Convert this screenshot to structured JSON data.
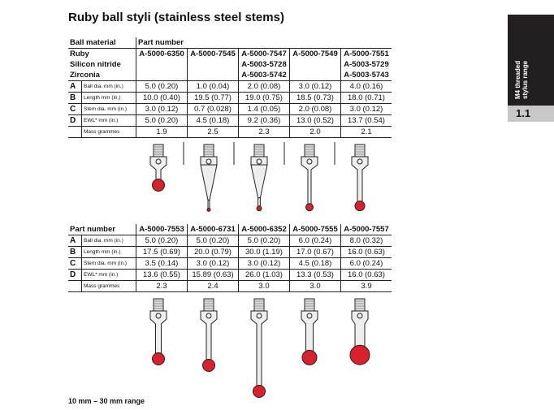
{
  "title": "Ruby ball styli (stainless steel stems)",
  "table1": {
    "ball_material_label": "Ball material",
    "part_number_label": "Part number",
    "materials": [
      "Ruby",
      "Silicon nitride",
      "Zirconia"
    ],
    "parts": [
      [
        "A-5000-6350",
        "",
        ""
      ],
      [
        "A-5000-7545",
        "",
        ""
      ],
      [
        "A-5000-7547",
        "A-5003-5728",
        "A-5003-5742"
      ],
      [
        "A-5000-7549",
        "",
        ""
      ],
      [
        "A-5000-7551",
        "A-5003-5729",
        "A-5003-5743"
      ]
    ],
    "rows": [
      {
        "letter": "A",
        "label": "Ball dia. mm (in.)",
        "values": [
          "5.0 (0.20)",
          "1.0 (0.04)",
          "2.0 (0.08)",
          "3.0 (0.12)",
          "4.0 (0.16)"
        ]
      },
      {
        "letter": "B",
        "label": "Length mm (in.)",
        "values": [
          "10.0 (0.40)",
          "19.5 (0.77)",
          "19.0 (0.75)",
          "18.5 (0.73)",
          "18.0 (0.71)"
        ]
      },
      {
        "letter": "C",
        "label": "Stem dia. mm (in.)",
        "values": [
          "3.0 (0.12)",
          "0.7 (0.028)",
          "1.4 (0.05)",
          "2.0 (0.08)",
          "3.0 (0.12)"
        ]
      },
      {
        "letter": "D",
        "label": "EWL* mm (in.)",
        "values": [
          "5.0 (0.20)",
          "4.5 (0.18)",
          "9.2 (0.36)",
          "13.0 (0.52)",
          "13.7 (0.54)"
        ]
      },
      {
        "letter": "",
        "label": "Mass grammes",
        "values": [
          "1.9",
          "2.5",
          "2.3",
          "2.0",
          "2.1"
        ]
      }
    ],
    "stem_shapes": [
      "neck",
      "cone",
      "cone",
      "straight",
      "straight"
    ]
  },
  "table2": {
    "part_number_label": "Part number",
    "parts": [
      "A-5000-7553",
      "A-5000-6731",
      "A-5000-6352",
      "A-5000-7555",
      "A-5000-7557"
    ],
    "rows": [
      {
        "letter": "A",
        "label": "Ball dia. mm (in.)",
        "values": [
          "5.0 (0.20)",
          "5.0 (0.20)",
          "5.0 (0.20)",
          "6.0 (0.24)",
          "8.0 (0.32)"
        ]
      },
      {
        "letter": "B",
        "label": "Length mm (in.)",
        "values": [
          "17.5 (0.69)",
          "20.0 (0.79)",
          "30.0 (1.19)",
          "17.0 (0.67)",
          "16.0 (0.63)"
        ]
      },
      {
        "letter": "C",
        "label": "Stem dia. mm (in.)",
        "values": [
          "3.5 (0.14)",
          "3.0 (0.12)",
          "3.0 (0.12)",
          "4.5 (0.18)",
          "6.0 (0.24)"
        ]
      },
      {
        "letter": "D",
        "label": "EWL* mm (in.)",
        "values": [
          "13.6 (0.55)",
          "15.89 (0.63)",
          "26.0 (1.03)",
          "13.3 (0.53)",
          "16.0 (0.63)"
        ]
      },
      {
        "letter": "",
        "label": "Mass grammes",
        "values": [
          "2.3",
          "2.4",
          "3.0",
          "3.0",
          "3.9"
        ]
      }
    ],
    "stem_shapes": [
      "straight",
      "straight",
      "straight",
      "straight",
      "straight"
    ]
  },
  "footer": "10 mm – 30 mm range",
  "side_tab": {
    "line1": "M4 threaded",
    "line2": "stylus range",
    "section": "1.1"
  },
  "colors": {
    "ball": "#d9202c",
    "tab_dark": "#231f20",
    "tab_gray": "#c8c8c8"
  }
}
